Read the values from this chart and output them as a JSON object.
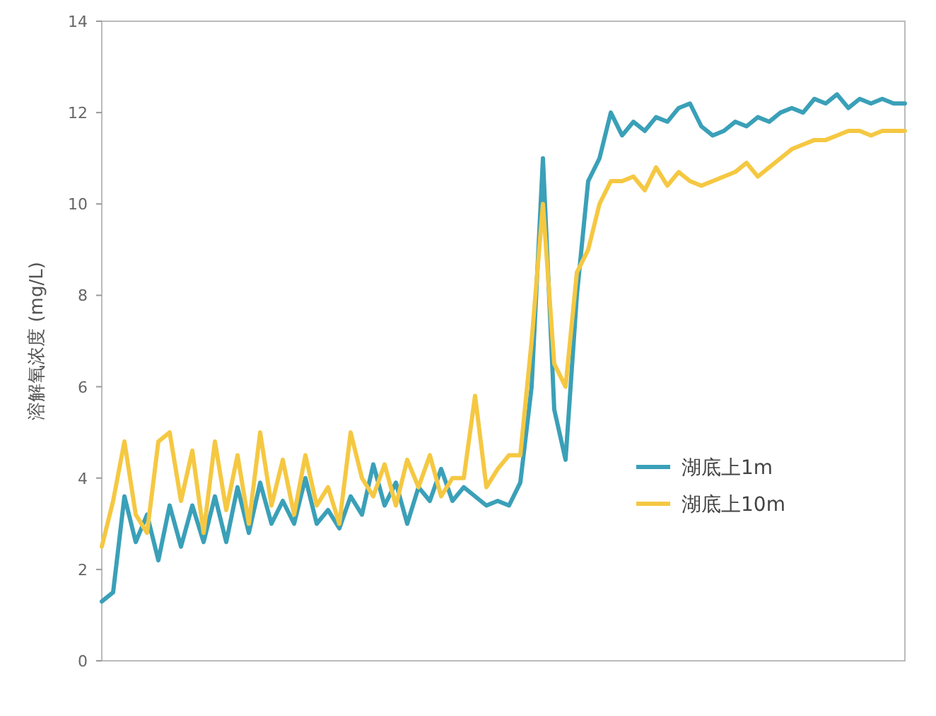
{
  "chart_data": {
    "type": "line",
    "ylabel": "溶解氧浓度 (mg/L)",
    "categories": [
      null,
      null,
      null,
      null,
      null,
      null,
      null,
      null,
      null,
      null,
      null,
      null,
      null,
      null,
      null,
      null,
      null,
      null,
      null,
      null,
      null,
      null,
      null,
      null,
      null,
      null,
      null,
      null,
      null,
      null,
      null,
      null,
      null,
      null,
      null,
      null,
      null,
      null,
      null,
      null,
      null,
      null,
      null,
      null,
      null,
      null,
      null,
      null,
      null,
      null,
      null,
      null,
      null,
      null,
      null,
      null,
      null,
      null,
      null,
      null,
      null,
      null,
      null,
      null,
      null,
      null,
      null,
      null,
      null,
      null,
      null,
      null
    ],
    "ylim": [
      0,
      14
    ],
    "yticks": [
      0,
      2,
      4,
      6,
      8,
      10,
      12,
      14
    ],
    "legend": "right",
    "series": [
      {
        "name": "湖底上1m",
        "color": "#3aa0b8",
        "values": [
          1.3,
          1.5,
          3.6,
          2.6,
          3.2,
          2.2,
          3.4,
          2.5,
          3.4,
          2.6,
          3.6,
          2.6,
          3.8,
          2.8,
          3.9,
          3.0,
          3.5,
          3.0,
          4.0,
          3.0,
          3.3,
          2.9,
          3.6,
          3.2,
          4.3,
          3.4,
          3.9,
          3.0,
          3.8,
          3.5,
          4.2,
          3.5,
          3.8,
          3.6,
          3.4,
          3.5,
          3.4,
          3.9,
          6.0,
          11.0,
          5.5,
          4.4,
          8.0,
          10.5,
          11.0,
          12.0,
          11.5,
          11.8,
          11.6,
          11.9,
          11.8,
          12.1,
          12.2,
          11.7,
          11.5,
          11.6,
          11.8,
          11.7,
          11.9,
          11.8,
          12.0,
          12.1,
          12.0,
          12.3,
          12.2,
          12.4,
          12.1,
          12.3,
          12.2,
          12.3,
          12.2,
          12.2
        ]
      },
      {
        "name": "湖底上10m",
        "color": "#f5c842",
        "values": [
          2.5,
          3.5,
          4.8,
          3.2,
          2.8,
          4.8,
          5.0,
          3.5,
          4.6,
          2.8,
          4.8,
          3.3,
          4.5,
          3.0,
          5.0,
          3.4,
          4.4,
          3.2,
          4.5,
          3.4,
          3.8,
          3.0,
          5.0,
          4.0,
          3.6,
          4.3,
          3.4,
          4.4,
          3.8,
          4.5,
          3.6,
          4.0,
          4.0,
          5.8,
          3.8,
          4.2,
          4.5,
          4.5,
          7.0,
          10.0,
          6.5,
          6.0,
          8.5,
          9.0,
          10.0,
          10.5,
          10.5,
          10.6,
          10.3,
          10.8,
          10.4,
          10.7,
          10.5,
          10.4,
          10.5,
          10.6,
          10.7,
          10.9,
          10.6,
          10.8,
          11.0,
          11.2,
          11.3,
          11.4,
          11.4,
          11.5,
          11.6,
          11.6,
          11.5,
          11.6,
          11.6,
          11.6
        ]
      }
    ]
  }
}
